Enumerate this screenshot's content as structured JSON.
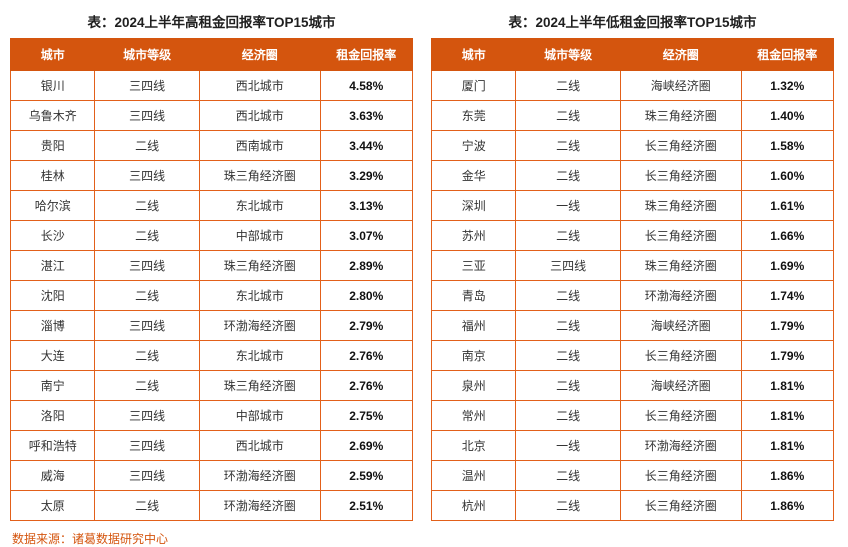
{
  "colors": {
    "accent": "#d4550e",
    "header_bg": "#d4550e",
    "header_text": "#ffffff",
    "body_text": "#333333"
  },
  "source_note": "数据来源：诸葛数据研究中心",
  "chart_data": [
    {
      "type": "table",
      "title": "表：2024上半年高租金回报率TOP15城市",
      "columns": [
        "城市",
        "城市等级",
        "经济圈",
        "租金回报率"
      ],
      "rows": [
        [
          "银川",
          "三四线",
          "西北城市",
          "4.58%"
        ],
        [
          "乌鲁木齐",
          "三四线",
          "西北城市",
          "3.63%"
        ],
        [
          "贵阳",
          "二线",
          "西南城市",
          "3.44%"
        ],
        [
          "桂林",
          "三四线",
          "珠三角经济圈",
          "3.29%"
        ],
        [
          "哈尔滨",
          "二线",
          "东北城市",
          "3.13%"
        ],
        [
          "长沙",
          "二线",
          "中部城市",
          "3.07%"
        ],
        [
          "湛江",
          "三四线",
          "珠三角经济圈",
          "2.89%"
        ],
        [
          "沈阳",
          "二线",
          "东北城市",
          "2.80%"
        ],
        [
          "淄博",
          "三四线",
          "环渤海经济圈",
          "2.79%"
        ],
        [
          "大连",
          "二线",
          "东北城市",
          "2.76%"
        ],
        [
          "南宁",
          "二线",
          "珠三角经济圈",
          "2.76%"
        ],
        [
          "洛阳",
          "三四线",
          "中部城市",
          "2.75%"
        ],
        [
          "呼和浩特",
          "三四线",
          "西北城市",
          "2.69%"
        ],
        [
          "威海",
          "三四线",
          "环渤海经济圈",
          "2.59%"
        ],
        [
          "太原",
          "二线",
          "环渤海经济圈",
          "2.51%"
        ]
      ]
    },
    {
      "type": "table",
      "title": "表：2024上半年低租金回报率TOP15城市",
      "columns": [
        "城市",
        "城市等级",
        "经济圈",
        "租金回报率"
      ],
      "rows": [
        [
          "厦门",
          "二线",
          "海峡经济圈",
          "1.32%"
        ],
        [
          "东莞",
          "二线",
          "珠三角经济圈",
          "1.40%"
        ],
        [
          "宁波",
          "二线",
          "长三角经济圈",
          "1.58%"
        ],
        [
          "金华",
          "二线",
          "长三角经济圈",
          "1.60%"
        ],
        [
          "深圳",
          "一线",
          "珠三角经济圈",
          "1.61%"
        ],
        [
          "苏州",
          "二线",
          "长三角经济圈",
          "1.66%"
        ],
        [
          "三亚",
          "三四线",
          "珠三角经济圈",
          "1.69%"
        ],
        [
          "青岛",
          "二线",
          "环渤海经济圈",
          "1.74%"
        ],
        [
          "福州",
          "二线",
          "海峡经济圈",
          "1.79%"
        ],
        [
          "南京",
          "二线",
          "长三角经济圈",
          "1.79%"
        ],
        [
          "泉州",
          "二线",
          "海峡经济圈",
          "1.81%"
        ],
        [
          "常州",
          "二线",
          "长三角经济圈",
          "1.81%"
        ],
        [
          "北京",
          "一线",
          "环渤海经济圈",
          "1.81%"
        ],
        [
          "温州",
          "二线",
          "长三角经济圈",
          "1.86%"
        ],
        [
          "杭州",
          "二线",
          "长三角经济圈",
          "1.86%"
        ]
      ]
    }
  ]
}
